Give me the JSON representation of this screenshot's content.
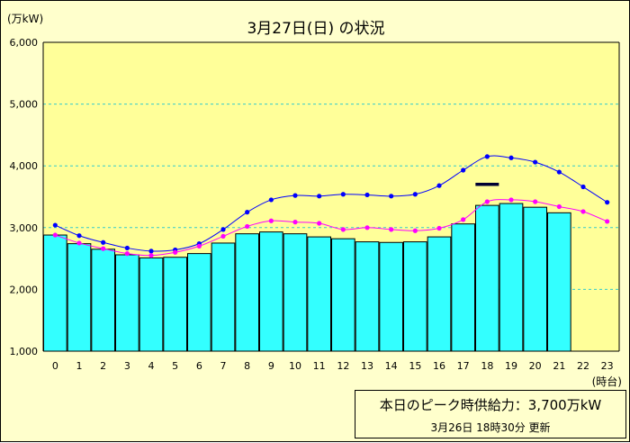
{
  "chart_data": {
    "type": "bar",
    "title": "3月27日(日) の状況",
    "ylabel": "(万kW)",
    "xlabel": "(時台)",
    "ylim": [
      1000,
      6000
    ],
    "yticks": [
      "1,000",
      "2,000",
      "3,000",
      "4,000",
      "5,000",
      "6,000"
    ],
    "categories": [
      "0",
      "1",
      "2",
      "3",
      "4",
      "5",
      "6",
      "7",
      "8",
      "9",
      "10",
      "11",
      "12",
      "13",
      "14",
      "15",
      "16",
      "17",
      "18",
      "19",
      "20",
      "21",
      "22",
      "23"
    ],
    "grid": true,
    "series": [
      {
        "kind": "bar",
        "values": [
          2880,
          2740,
          2650,
          2560,
          2510,
          2520,
          2580,
          2750,
          2900,
          2930,
          2900,
          2850,
          2820,
          2770,
          2760,
          2770,
          2850,
          3060,
          3360,
          3390,
          3330,
          3240,
          null,
          null
        ]
      },
      {
        "kind": "line",
        "values": [
          3040,
          2870,
          2760,
          2670,
          2620,
          2640,
          2740,
          2970,
          3250,
          3450,
          3520,
          3510,
          3540,
          3530,
          3510,
          3540,
          3680,
          3930,
          4150,
          4130,
          4060,
          3900,
          3660,
          3410
        ]
      },
      {
        "kind": "line",
        "values": [
          2880,
          2750,
          2660,
          2580,
          2550,
          2600,
          2700,
          2860,
          3020,
          3110,
          3090,
          3070,
          2970,
          3000,
          2970,
          2950,
          2990,
          3130,
          3420,
          3450,
          3420,
          3340,
          3260,
          3100
        ]
      }
    ],
    "peak_marker": {
      "category": "18",
      "value": 3700
    },
    "colors": {
      "background": "#ffffcc",
      "plot": "#ffff99",
      "bar": "#33ffff",
      "bar_border": "#000000",
      "line_blue": "#0000ff",
      "line_magenta": "#ff00ff",
      "marker": "#000033",
      "grid": "#33cccc"
    }
  },
  "info": {
    "supply": "本日のピーク時供給力：3,700万kW",
    "updated": "3月26日 18時30分 更新"
  }
}
